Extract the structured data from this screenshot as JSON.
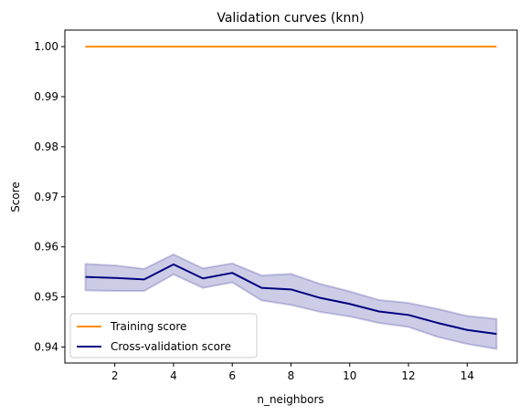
{
  "chart_data": {
    "type": "line",
    "title": "Validation curves (knn)",
    "xlabel": "n_neighbors",
    "ylabel": "Score",
    "xlim": [
      0.3,
      15.7
    ],
    "ylim": [
      0.9368,
      1.0033
    ],
    "xticks": [
      2,
      4,
      6,
      8,
      10,
      12,
      14
    ],
    "yticks": [
      0.94,
      0.95,
      0.96,
      0.97,
      0.98,
      0.99,
      1.0
    ],
    "ytick_labels": [
      "0.94",
      "0.95",
      "0.96",
      "0.97",
      "0.98",
      "0.99",
      "1.00"
    ],
    "x": [
      1,
      2,
      3,
      4,
      5,
      6,
      7,
      8,
      9,
      10,
      11,
      12,
      13,
      14,
      15
    ],
    "series": [
      {
        "name": "Training score",
        "color": "#ff8c00",
        "values": [
          1.0,
          1.0,
          1.0,
          1.0,
          1.0,
          1.0,
          1.0,
          1.0,
          1.0,
          1.0,
          1.0,
          1.0,
          1.0,
          1.0,
          1.0
        ]
      },
      {
        "name": "Cross-validation score",
        "color": "#000080",
        "values": [
          0.954,
          0.9538,
          0.9535,
          0.9565,
          0.9537,
          0.9548,
          0.9518,
          0.9515,
          0.9498,
          0.9486,
          0.9471,
          0.9464,
          0.9448,
          0.9434,
          0.9426
        ],
        "band_upper": [
          0.9566,
          0.9563,
          0.9556,
          0.9585,
          0.9557,
          0.9567,
          0.9543,
          0.9546,
          0.9526,
          0.9511,
          0.9494,
          0.9488,
          0.9476,
          0.9462,
          0.9456
        ],
        "band_lower": [
          0.9513,
          0.9512,
          0.9512,
          0.9545,
          0.9518,
          0.9529,
          0.9493,
          0.9484,
          0.947,
          0.9461,
          0.9448,
          0.944,
          0.942,
          0.9406,
          0.9396
        ]
      }
    ],
    "grid": false,
    "legend": "lower-left"
  }
}
